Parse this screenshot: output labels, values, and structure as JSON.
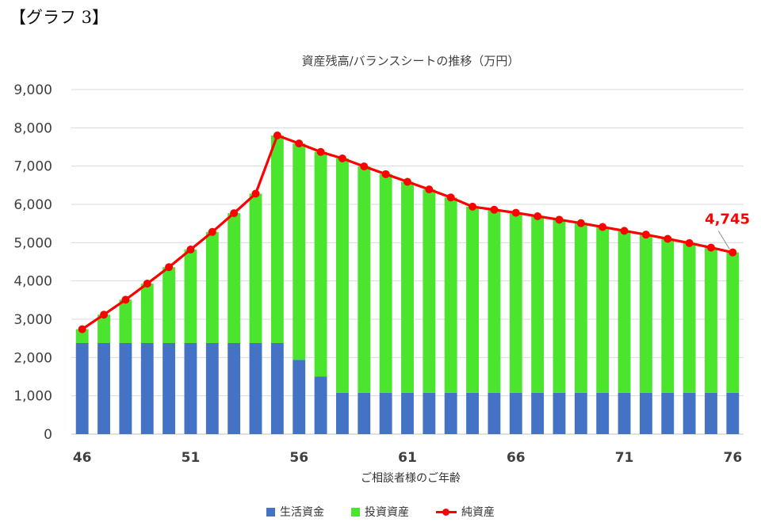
{
  "heading": "【グラフ 3】",
  "chart_data": {
    "type": "bar",
    "title": "資産残高/バランスシートの推移（万円）",
    "xlabel": "ご相談者様のご年齢",
    "ylabel": "",
    "ylim": [
      0,
      9000
    ],
    "yticks": [
      0,
      1000,
      2000,
      3000,
      4000,
      5000,
      6000,
      7000,
      8000,
      9000
    ],
    "ytick_labels": [
      "0",
      "1,000",
      "2,000",
      "3,000",
      "4,000",
      "5,000",
      "6,000",
      "7,000",
      "8,000",
      "9,000"
    ],
    "xtick_labels": [
      "46",
      "51",
      "56",
      "61",
      "66",
      "71",
      "76"
    ],
    "xtick_values": [
      46,
      51,
      56,
      61,
      66,
      71,
      76
    ],
    "x": [
      46,
      47,
      48,
      49,
      50,
      51,
      52,
      53,
      54,
      55,
      56,
      57,
      58,
      59,
      60,
      61,
      62,
      63,
      64,
      65,
      66,
      67,
      68,
      69,
      70,
      71,
      72,
      73,
      74,
      75,
      76
    ],
    "stacked": true,
    "grid": true,
    "legend_position": "bottom",
    "series": [
      {
        "name": "生活資金",
        "kind": "bar",
        "color": "#4472c4",
        "values": [
          2380,
          2380,
          2380,
          2380,
          2380,
          2380,
          2380,
          2380,
          2380,
          2380,
          1940,
          1500,
          1080,
          1080,
          1080,
          1080,
          1080,
          1080,
          1080,
          1080,
          1080,
          1080,
          1080,
          1080,
          1080,
          1080,
          1080,
          1080,
          1080,
          1080,
          1080
        ]
      },
      {
        "name": "投資資産",
        "kind": "bar",
        "color": "#4be52d",
        "values": [
          360,
          740,
          1130,
          1550,
          1980,
          2440,
          2900,
          3390,
          3900,
          5420,
          5650,
          5870,
          6120,
          5910,
          5710,
          5510,
          5310,
          5100,
          4860,
          4780,
          4700,
          4610,
          4520,
          4430,
          4330,
          4230,
          4130,
          4020,
          3910,
          3790,
          3665
        ]
      },
      {
        "name": "純資産",
        "kind": "line",
        "color": "#ff0000",
        "values": [
          2740,
          3120,
          3510,
          3930,
          4360,
          4820,
          5280,
          5770,
          6280,
          7800,
          7590,
          7370,
          7200,
          6990,
          6790,
          6590,
          6390,
          6180,
          5940,
          5860,
          5780,
          5690,
          5600,
          5510,
          5410,
          5310,
          5210,
          5100,
          4990,
          4870,
          4745
        ]
      }
    ],
    "annotations": [
      {
        "text": "4,745",
        "x": 76,
        "y": 4745,
        "color": "#ff0000"
      }
    ]
  }
}
